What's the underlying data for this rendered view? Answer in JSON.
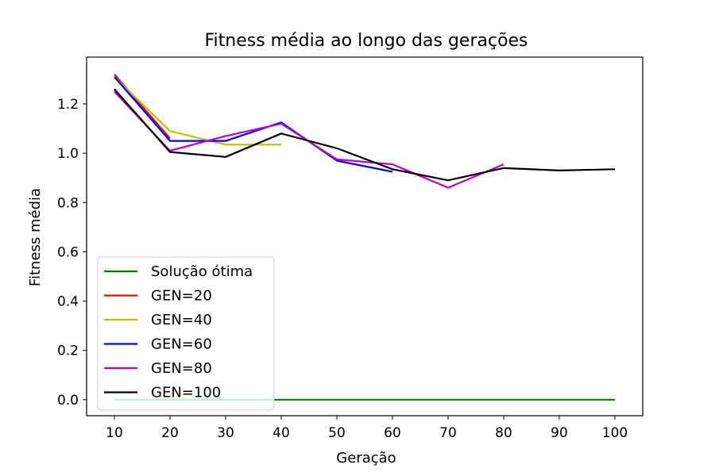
{
  "chart_data": {
    "type": "line",
    "title": "Fitness média ao longo das gerações",
    "xlabel": "Geração",
    "ylabel": "Fitness média",
    "xlim": [
      5,
      105
    ],
    "ylim": [
      -0.065,
      1.39
    ],
    "xticks": [
      10,
      20,
      30,
      40,
      50,
      60,
      70,
      80,
      90,
      100
    ],
    "yticks": [
      0.0,
      0.2,
      0.4,
      0.6,
      0.8,
      1.0,
      1.2
    ],
    "ytick_labels": [
      "0.0",
      "0.2",
      "0.4",
      "0.6",
      "0.8",
      "1.0",
      "1.2"
    ],
    "grid": false,
    "legend_position": "lower-left",
    "series": [
      {
        "name": "Solução ótima",
        "color": "#008000",
        "x": [
          10,
          20,
          30,
          40,
          50,
          60,
          70,
          80,
          90,
          100
        ],
        "values": [
          0,
          0,
          0,
          0,
          0,
          0,
          0,
          0,
          0,
          0
        ]
      },
      {
        "name": "GEN=20",
        "color": "#ff0000",
        "x": [
          10,
          20
        ],
        "values": [
          1.32,
          1.06
        ]
      },
      {
        "name": "GEN=40",
        "color": "#bfbf00",
        "x": [
          10,
          20,
          30,
          40
        ],
        "values": [
          1.31,
          1.09,
          1.035,
          1.035
        ]
      },
      {
        "name": "GEN=60",
        "color": "#0000ff",
        "x": [
          10,
          20,
          30,
          40,
          50,
          60
        ],
        "values": [
          1.31,
          1.05,
          1.05,
          1.125,
          0.97,
          0.925
        ]
      },
      {
        "name": "GEN=80",
        "color": "#bf00bf",
        "x": [
          10,
          20,
          30,
          40,
          50,
          60,
          70,
          80
        ],
        "values": [
          1.25,
          1.01,
          1.07,
          1.12,
          0.975,
          0.955,
          0.86,
          0.955
        ]
      },
      {
        "name": "GEN=100",
        "color": "#000000",
        "x": [
          10,
          20,
          30,
          40,
          50,
          60,
          70,
          80,
          90,
          100
        ],
        "values": [
          1.26,
          1.005,
          0.985,
          1.08,
          1.02,
          0.935,
          0.89,
          0.94,
          0.93,
          0.935
        ]
      }
    ]
  }
}
